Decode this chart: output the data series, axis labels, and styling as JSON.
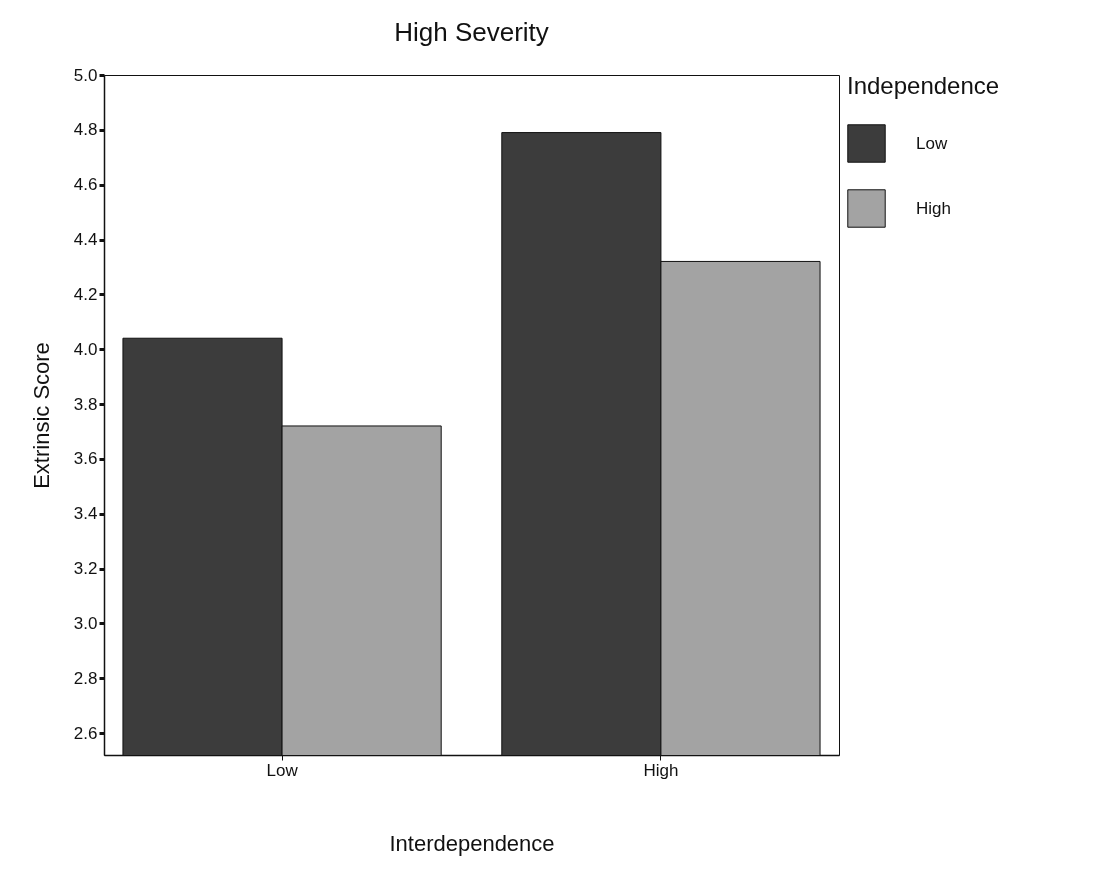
{
  "chart_data": {
    "type": "bar",
    "title": "High Severity",
    "xlabel": "Interdependence",
    "ylabel": "Extrinsic Score",
    "legend_title": "Independence",
    "legend": "right",
    "grid": false,
    "categories": [
      "Low",
      "High"
    ],
    "series": [
      {
        "name": "Low",
        "color": "#3c3c3c",
        "values": [
          4.04,
          4.79
        ]
      },
      {
        "name": "High",
        "color": "#a3a3a3",
        "values": [
          3.72,
          4.32
        ]
      }
    ],
    "ylim": [
      2.52,
      5.0
    ],
    "yticks": [
      {
        "value": 2.6,
        "label": "2.6"
      },
      {
        "value": 2.8,
        "label": "2.8"
      },
      {
        "value": 3.0,
        "label": "3.0"
      },
      {
        "value": 3.2,
        "label": "3.2"
      },
      {
        "value": 3.4,
        "label": "3.4"
      },
      {
        "value": 3.6,
        "label": "3.6"
      },
      {
        "value": 3.8,
        "label": "3.8"
      },
      {
        "value": 4.0,
        "label": "4.0"
      },
      {
        "value": 4.2,
        "label": "4.2"
      },
      {
        "value": 4.4,
        "label": "4.4"
      },
      {
        "value": 4.6,
        "label": "4.6"
      },
      {
        "value": 4.8,
        "label": "4.8"
      },
      {
        "value": 5.0,
        "label": "5.0"
      }
    ]
  }
}
